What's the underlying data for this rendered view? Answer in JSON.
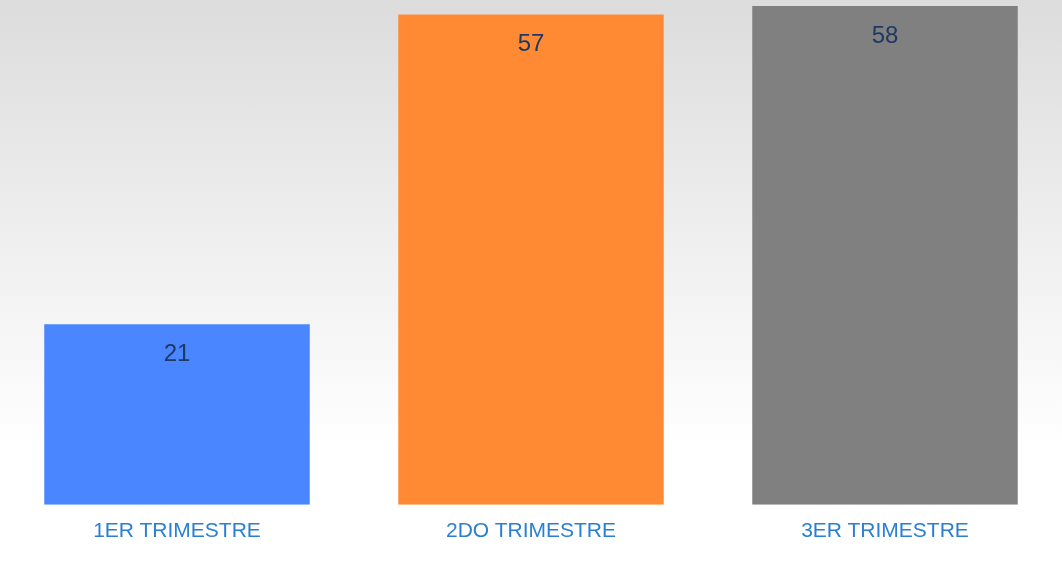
{
  "chart_data": {
    "type": "bar",
    "categories": [
      "1ER TRIMESTRE",
      "2DO TRIMESTRE",
      "3ER TRIMESTRE"
    ],
    "values": [
      21,
      57,
      58
    ],
    "colors": [
      "#4a86ff",
      "#ff8a33",
      "#808080"
    ],
    "data_labels": true,
    "grid": false,
    "legend": false
  }
}
